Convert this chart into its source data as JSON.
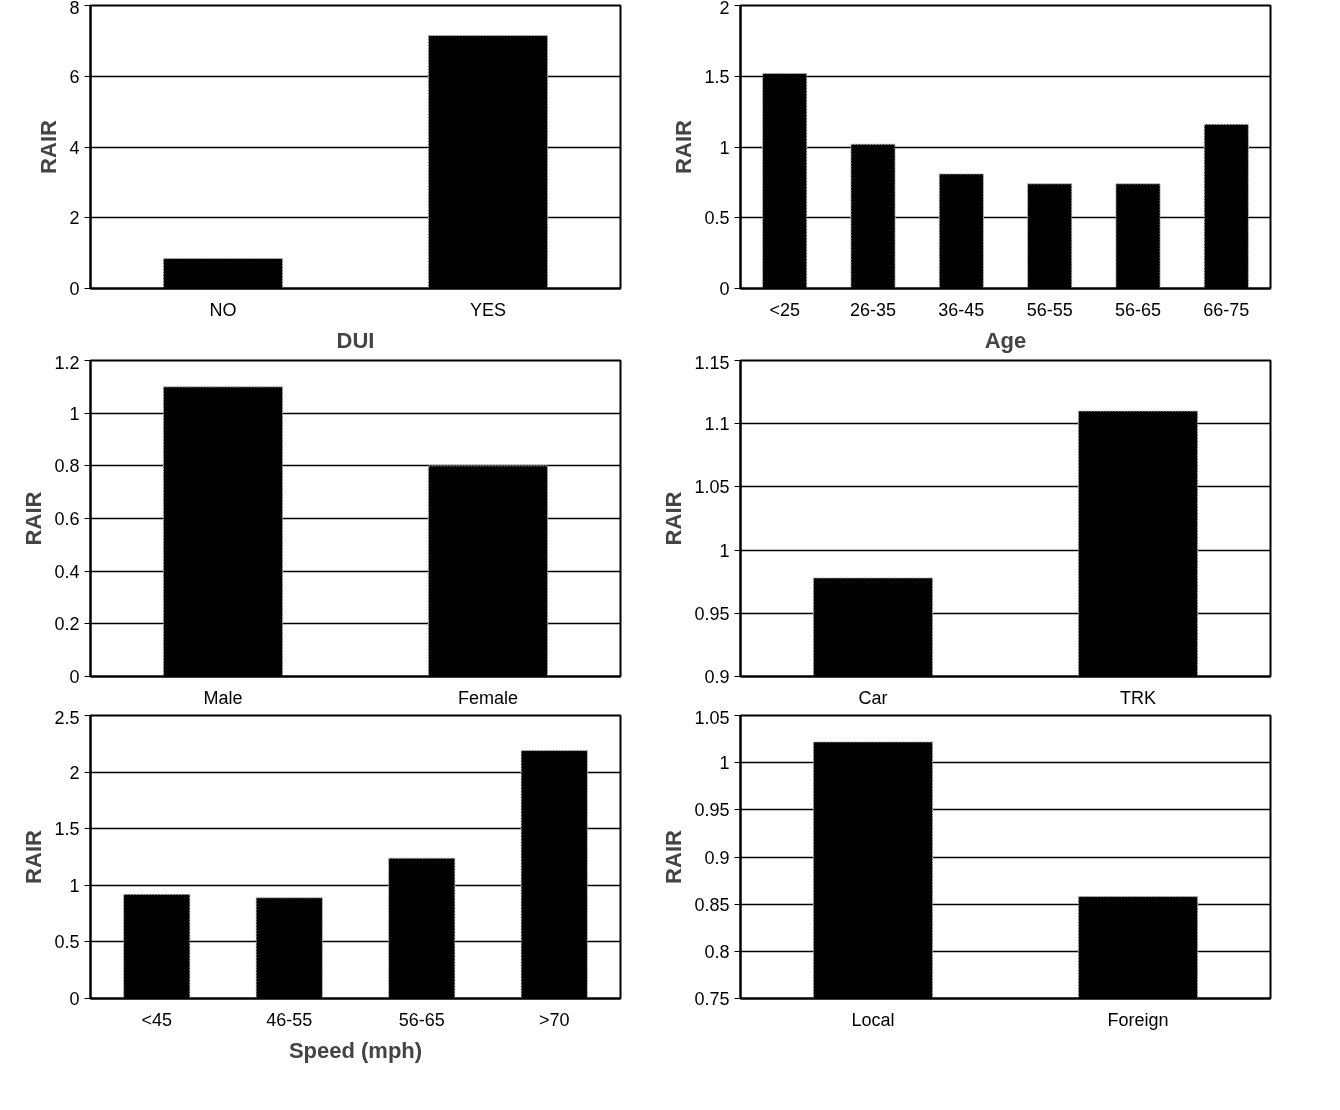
{
  "chart_data": [
    {
      "type": "bar",
      "categories": [
        "NO",
        "YES"
      ],
      "values": [
        0.85,
        7.15
      ],
      "color": "#000000",
      "xlabel": "DUI",
      "ylabel": "RAIR",
      "ylim": [
        0,
        8
      ],
      "yticks": [
        0,
        2,
        4,
        6,
        8
      ],
      "grid": "y"
    },
    {
      "type": "bar",
      "categories": [
        "<25",
        "26-35",
        "36-45",
        "56-55",
        "56-65",
        "66-75"
      ],
      "values": [
        1.52,
        1.02,
        0.81,
        0.74,
        0.74,
        1.16
      ],
      "color": "#000000",
      "xlabel": "Age",
      "ylabel": "RAIR",
      "ylim": [
        0,
        2
      ],
      "yticks": [
        0,
        0.5,
        1,
        1.5,
        2
      ],
      "grid": "y"
    },
    {
      "type": "bar",
      "categories": [
        "Male",
        "Female"
      ],
      "values": [
        1.1,
        0.8
      ],
      "color": "#000000",
      "ylabel": "RAIR",
      "ylim": [
        0,
        1.2
      ],
      "yticks": [
        0,
        0.2,
        0.4,
        0.6,
        0.8,
        1,
        1.2
      ],
      "grid": "y"
    },
    {
      "type": "bar",
      "categories": [
        "Car",
        "TRK"
      ],
      "values": [
        0.978,
        1.11
      ],
      "color": "#000000",
      "ylabel": "RAIR",
      "ylim": [
        0.9,
        1.15
      ],
      "yticks": [
        0.9,
        0.95,
        1,
        1.05,
        1.1,
        1.15
      ],
      "grid": "y"
    },
    {
      "type": "bar",
      "categories": [
        "<45",
        "46-55",
        "56-65",
        ">70"
      ],
      "values": [
        0.92,
        0.89,
        1.24,
        2.19
      ],
      "color": "#000000",
      "xlabel": "Speed (mph)",
      "ylabel": "RAIR",
      "ylim": [
        0,
        2.5
      ],
      "yticks": [
        0,
        0.5,
        1,
        1.5,
        2,
        2.5
      ],
      "grid": "y"
    },
    {
      "type": "bar",
      "categories": [
        "Local",
        "Foreign"
      ],
      "values": [
        1.022,
        0.858
      ],
      "color": "#000000",
      "ylabel": "RAIR",
      "ylim": [
        0.75,
        1.05
      ],
      "yticks": [
        0.75,
        0.8,
        0.85,
        0.9,
        0.95,
        1,
        1.05
      ],
      "grid": "y"
    }
  ]
}
